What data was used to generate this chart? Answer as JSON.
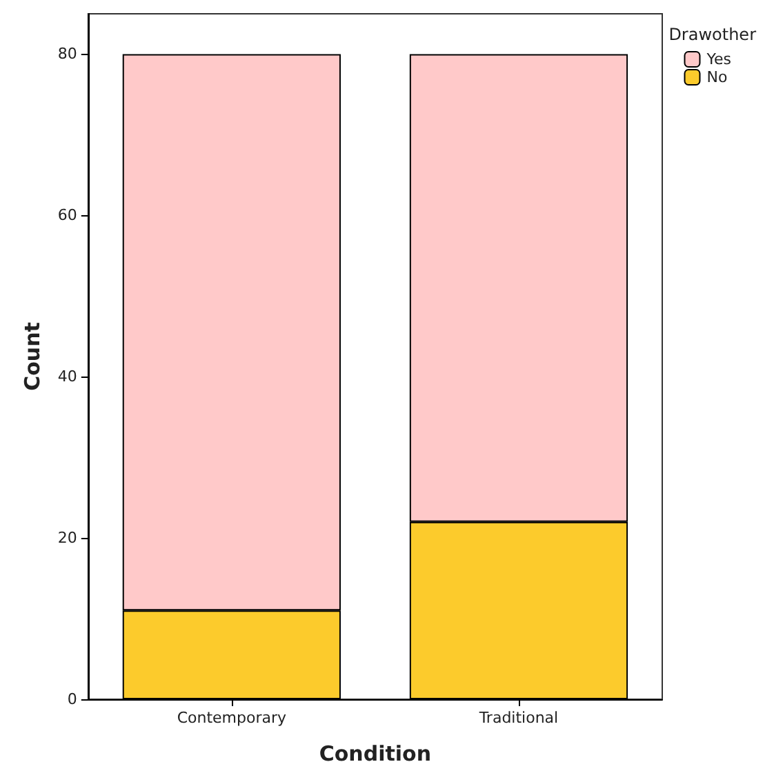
{
  "chart_data": {
    "type": "bar",
    "stacked": true,
    "xlabel": "Condition",
    "ylabel": "Count",
    "legend_title": "Drawother",
    "legend": "top right",
    "grid": false,
    "categories": [
      "Contemporary",
      "Traditional"
    ],
    "series": [
      {
        "name": "No",
        "color": "#fccb2c",
        "values": [
          11,
          22
        ]
      },
      {
        "name": "Yes",
        "color": "#ffc9c9",
        "values": [
          69,
          58
        ]
      }
    ],
    "ylim": [
      0,
      85
    ],
    "yticks": [
      0,
      20,
      40,
      60,
      80
    ]
  }
}
